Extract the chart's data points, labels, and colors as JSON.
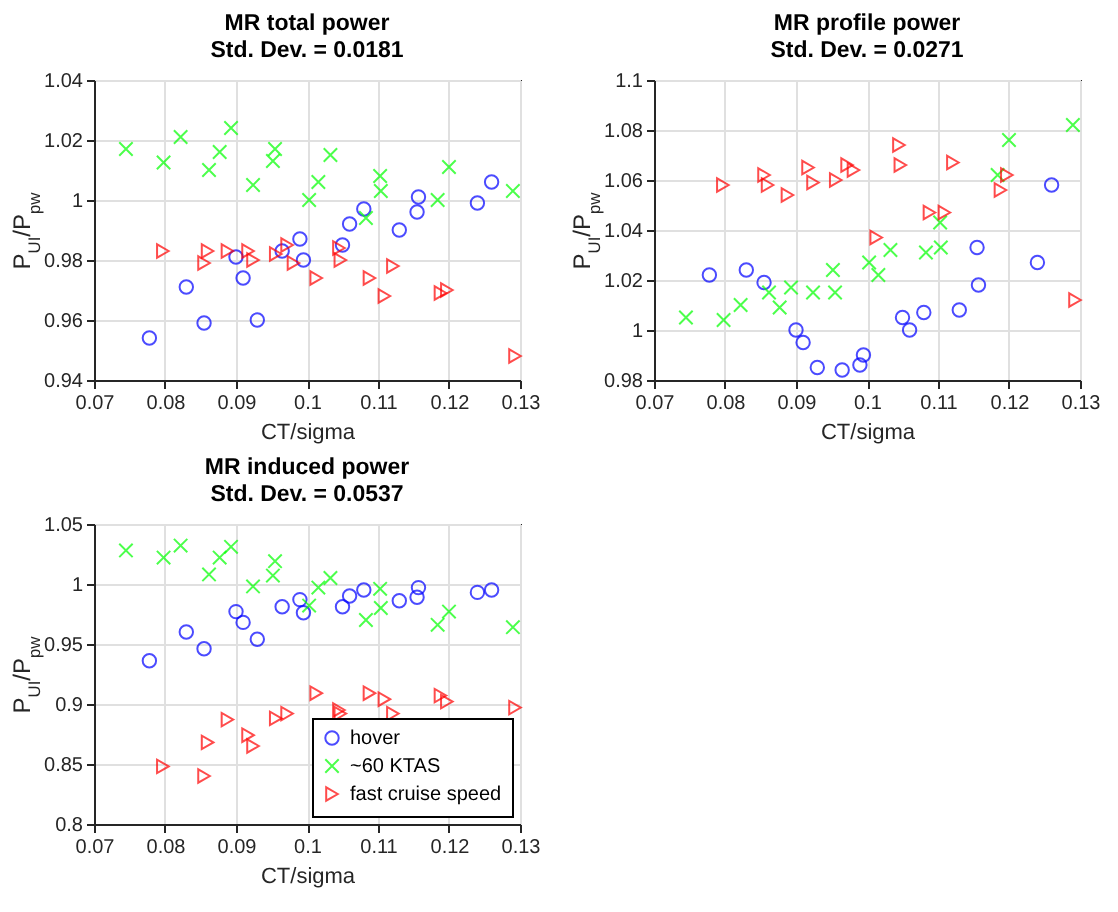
{
  "chart_data": [
    {
      "type": "scatter",
      "title": "MR total power",
      "subtitle": "Std. Dev. = 0.0181",
      "xlabel": "CT/sigma",
      "ylabel": "P$_{UI}$/P$_{pw}$",
      "xlim": [
        0.07,
        0.13
      ],
      "xticks": [
        0.07,
        0.08,
        0.09,
        0.1,
        0.11,
        0.12,
        0.13
      ],
      "ylim": [
        0.94,
        1.04
      ],
      "yticks": [
        0.94,
        0.96,
        0.98,
        1,
        1.02,
        1.04
      ],
      "grid": true,
      "series": [
        {
          "color": "#0000ff",
          "marker": "circle",
          "x": [
            0.0778,
            0.083,
            0.0855,
            0.09,
            0.091,
            0.093,
            0.0965,
            0.099,
            0.0995,
            0.105,
            0.106,
            0.108,
            0.113,
            0.1155,
            0.1157,
            0.124,
            0.126
          ],
          "values": [
            0.954,
            0.971,
            0.959,
            0.981,
            0.974,
            0.96,
            0.983,
            0.987,
            0.98,
            0.985,
            0.992,
            0.997,
            0.99,
            0.996,
            1.001,
            0.999,
            1.006
          ]
        },
        {
          "color": "#00ff00",
          "marker": "cross",
          "x": [
            0.0745,
            0.0798,
            0.0822,
            0.0862,
            0.0877,
            0.0893,
            0.0924,
            0.0952,
            0.0955,
            0.1003,
            0.1016,
            0.1033,
            0.1083,
            0.1103,
            0.1104,
            0.1184,
            0.12,
            0.129
          ],
          "values": [
            1.017,
            1.0125,
            1.021,
            1.01,
            1.016,
            1.024,
            1.005,
            1.013,
            1.017,
            1.0,
            1.006,
            1.015,
            0.994,
            1.008,
            1.003,
            1.0,
            1.011,
            1.003
          ]
        },
        {
          "color": "#ff0000",
          "marker": "triangle",
          "x": [
            0.0797,
            0.0855,
            0.086,
            0.0888,
            0.0917,
            0.0924,
            0.0956,
            0.0972,
            0.0981,
            0.1013,
            0.1045,
            0.1047,
            0.1088,
            0.1109,
            0.1121,
            0.1188,
            0.1197,
            0.1293
          ],
          "values": [
            0.983,
            0.979,
            0.983,
            0.983,
            0.983,
            0.98,
            0.982,
            0.985,
            0.979,
            0.974,
            0.984,
            0.98,
            0.974,
            0.968,
            0.978,
            0.969,
            0.97,
            0.948
          ]
        }
      ]
    },
    {
      "type": "scatter",
      "title": "MR profile power",
      "subtitle": "Std. Dev. = 0.0271",
      "xlabel": "CT/sigma",
      "ylabel": "P$_{UI}$/P$_{pw}$",
      "xlim": [
        0.07,
        0.13
      ],
      "xticks": [
        0.07,
        0.08,
        0.09,
        0.1,
        0.11,
        0.12,
        0.13
      ],
      "ylim": [
        0.98,
        1.1
      ],
      "yticks": [
        0.98,
        1,
        1.02,
        1.04,
        1.06,
        1.08,
        1.1
      ],
      "grid": true,
      "series": [
        {
          "color": "#0000ff",
          "marker": "circle",
          "x": [
            0.0778,
            0.083,
            0.0855,
            0.09,
            0.091,
            0.093,
            0.0965,
            0.099,
            0.0995,
            0.105,
            0.106,
            0.108,
            0.113,
            0.1155,
            0.1157,
            0.124,
            0.126
          ],
          "values": [
            1.022,
            1.024,
            1.019,
            1.0,
            0.995,
            0.985,
            0.984,
            0.986,
            0.99,
            1.005,
            1.0,
            1.007,
            1.008,
            1.033,
            1.018,
            1.027,
            1.058
          ]
        },
        {
          "color": "#00ff00",
          "marker": "cross",
          "x": [
            0.0745,
            0.0798,
            0.0822,
            0.0862,
            0.0877,
            0.0893,
            0.0924,
            0.0952,
            0.0955,
            0.1003,
            0.1016,
            0.1033,
            0.1083,
            0.1103,
            0.1104,
            0.1184,
            0.12,
            0.129
          ],
          "values": [
            1.005,
            1.004,
            1.01,
            1.015,
            1.009,
            1.017,
            1.015,
            1.024,
            1.015,
            1.027,
            1.022,
            1.032,
            1.031,
            1.043,
            1.033,
            1.062,
            1.076,
            1.082
          ]
        },
        {
          "color": "#ff0000",
          "marker": "triangle",
          "x": [
            0.0797,
            0.0855,
            0.086,
            0.0888,
            0.0917,
            0.0924,
            0.0956,
            0.0972,
            0.0981,
            0.1013,
            0.1045,
            0.1047,
            0.1088,
            0.1109,
            0.1121,
            0.1188,
            0.1197,
            0.1293
          ],
          "values": [
            1.058,
            1.062,
            1.058,
            1.054,
            1.065,
            1.059,
            1.06,
            1.066,
            1.064,
            1.037,
            1.074,
            1.066,
            1.047,
            1.047,
            1.067,
            1.056,
            1.062,
            1.012
          ]
        }
      ]
    },
    {
      "type": "scatter",
      "title": "MR induced power",
      "subtitle": "Std. Dev. = 0.0537",
      "xlabel": "CT/sigma",
      "ylabel": "P$_{UI}$/P$_{pw}$",
      "xlim": [
        0.07,
        0.13
      ],
      "xticks": [
        0.07,
        0.08,
        0.09,
        0.1,
        0.11,
        0.12,
        0.13
      ],
      "ylim": [
        0.8,
        1.05
      ],
      "yticks": [
        0.8,
        0.85,
        0.9,
        0.95,
        1,
        1.05
      ],
      "grid": true,
      "legend": "bottom right",
      "series": [
        {
          "name": "hover",
          "color": "#0000ff",
          "marker": "circle",
          "x": [
            0.0778,
            0.083,
            0.0855,
            0.09,
            0.091,
            0.093,
            0.0965,
            0.099,
            0.0995,
            0.105,
            0.106,
            0.108,
            0.113,
            0.1155,
            0.1157,
            0.124,
            0.126
          ],
          "values": [
            0.936,
            0.96,
            0.946,
            0.977,
            0.968,
            0.954,
            0.981,
            0.987,
            0.976,
            0.981,
            0.99,
            0.995,
            0.986,
            0.989,
            0.997,
            0.993,
            0.995
          ]
        },
        {
          "name": "~60 KTAS",
          "color": "#00ff00",
          "marker": "cross",
          "x": [
            0.0745,
            0.0798,
            0.0822,
            0.0862,
            0.0877,
            0.0893,
            0.0924,
            0.0952,
            0.0955,
            0.1003,
            0.1016,
            0.1033,
            0.1083,
            0.1103,
            0.1104,
            0.1184,
            0.12,
            0.129
          ],
          "values": [
            1.028,
            1.022,
            1.032,
            1.008,
            1.022,
            1.031,
            0.998,
            1.007,
            1.019,
            0.982,
            0.997,
            1.005,
            0.97,
            0.996,
            0.98,
            0.966,
            0.977,
            0.964
          ]
        },
        {
          "name": "fast cruise speed",
          "color": "#ff0000",
          "marker": "triangle",
          "x": [
            0.0797,
            0.0855,
            0.086,
            0.0888,
            0.0917,
            0.0924,
            0.0956,
            0.0972,
            0.0981,
            0.1013,
            0.1045,
            0.1047,
            0.1088,
            0.1109,
            0.1121,
            0.1188,
            0.1197,
            0.1293
          ],
          "values": [
            0.848,
            0.84,
            0.868,
            0.887,
            0.874,
            0.865,
            0.888,
            0.892,
            null,
            0.909,
            0.895,
            0.892,
            0.909,
            0.904,
            0.892,
            0.907,
            0.902,
            0.897
          ]
        }
      ]
    }
  ]
}
